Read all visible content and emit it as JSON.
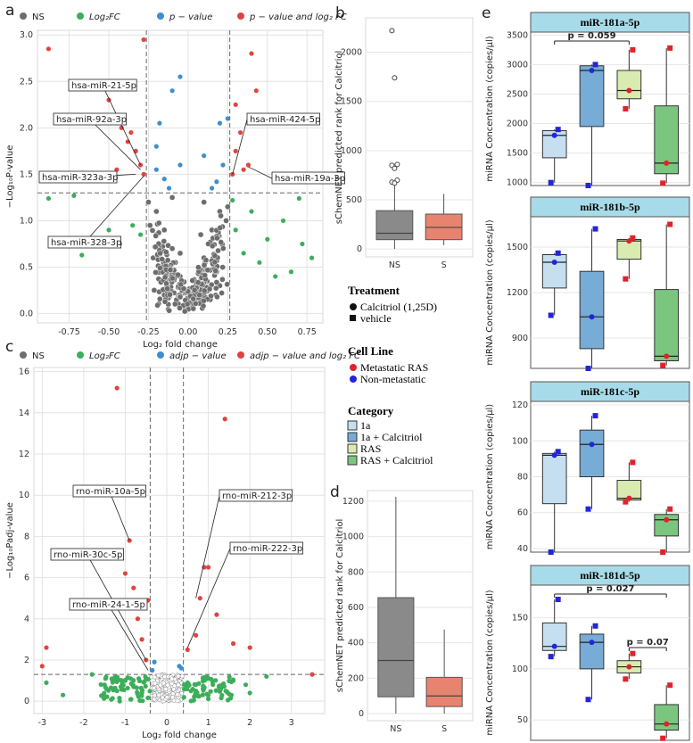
{
  "panel_labels": {
    "a": "a",
    "b": "b",
    "c": "c",
    "d": "d",
    "e": "e"
  },
  "colors": {
    "ns": "#6d6d6d",
    "fc": "#3cae5a",
    "p": "#3b8fd0",
    "both": "#e0443f",
    "box_b": "#8a8a8a",
    "box_s": "#e8836f",
    "c1a": "#c6dff0",
    "c1aCal": "#76acd6",
    "cRAS": "#d9ebb1",
    "cRASCal": "#7bc67f",
    "strip": "#a8dbe9",
    "metastatic": "#e2212b",
    "nonmetastatic": "#2425d8"
  },
  "legend_a": {
    "ns": "NS",
    "fc": "Log₂FC",
    "p": "p − value",
    "both": "p − value and log₂ FC"
  },
  "legend_c": {
    "ns": "NS",
    "fc": "Log₂FC",
    "p": "adjp − value",
    "both": "adjp − value and log₂ FC"
  },
  "treatment_legend": {
    "title": "Treatment",
    "items": [
      "Calcitriol (1,25D)",
      "vehicle"
    ]
  },
  "cellline_legend": {
    "title": "Cell Line",
    "items": [
      "Metastatic RAS",
      "Non-metastatic"
    ]
  },
  "category_legend": {
    "title": "Category",
    "items": [
      "1a",
      "1a + Calcitriol",
      "RAS",
      "RAS + Calcitriol"
    ]
  },
  "chart_data": [
    {
      "panel": "a",
      "type": "scatter",
      "xlabel": "Log₂ fold change",
      "ylabel": "−Log₁₀P-value",
      "xlim": [
        -0.95,
        0.85
      ],
      "ylim": [
        -0.1,
        3.05
      ],
      "xticks": [
        "-0.75",
        "-0.50",
        "-0.25",
        "0.00",
        "0.25",
        "0.50",
        "0.75"
      ],
      "yticks": [
        "0.0",
        "0.5",
        "1.0",
        "1.5",
        "2.0",
        "2.5",
        "3.0"
      ],
      "thresholds": {
        "x": [
          -0.263,
          0.263
        ],
        "y": 1.3
      },
      "series": [
        {
          "name": "NS",
          "points": [
            [
              -0.2,
              1.1
            ],
            [
              -0.15,
              0.9
            ],
            [
              -0.1,
              0.7
            ],
            [
              -0.05,
              0.4
            ],
            [
              0.0,
              0.1
            ],
            [
              0.05,
              0.3
            ],
            [
              0.1,
              0.6
            ],
            [
              0.15,
              0.9
            ],
            [
              0.2,
              1.1
            ],
            [
              -0.22,
              0.6
            ],
            [
              0.22,
              0.7
            ],
            [
              -0.12,
              0.3
            ],
            [
              0.12,
              0.35
            ],
            [
              -0.02,
              0.05
            ],
            [
              0.03,
              0.15
            ],
            [
              -0.18,
              0.5
            ],
            [
              0.18,
              0.45
            ],
            [
              -0.25,
              1.2
            ],
            [
              0.25,
              1.15
            ],
            [
              -0.08,
              0.55
            ],
            [
              0.08,
              0.85
            ],
            [
              -0.2,
              0.85
            ],
            [
              0.2,
              0.3
            ],
            [
              -0.15,
              0.2
            ],
            [
              0.14,
              0.15
            ],
            [
              -0.24,
              0.95
            ],
            [
              0.24,
              1.0
            ],
            [
              0.1,
              1.2
            ],
            [
              -0.1,
              1.25
            ],
            [
              -0.05,
              0.65
            ]
          ]
        },
        {
          "name": "Log₂FC",
          "points": [
            [
              -0.88,
              1.24
            ],
            [
              -0.72,
              1.27
            ],
            [
              -0.67,
              0.63
            ],
            [
              -0.5,
              0.9
            ],
            [
              -0.43,
              0.75
            ],
            [
              -0.35,
              0.95
            ],
            [
              -0.3,
              0.85
            ],
            [
              0.3,
              0.9
            ],
            [
              0.35,
              0.65
            ],
            [
              0.4,
              1.1
            ],
            [
              0.5,
              0.8
            ],
            [
              0.6,
              1.0
            ],
            [
              0.72,
              0.75
            ],
            [
              0.78,
              0.6
            ],
            [
              0.55,
              0.4
            ],
            [
              0.65,
              0.45
            ],
            [
              0.7,
              1.24
            ],
            [
              0.28,
              1.22
            ],
            [
              0.45,
              0.55
            ]
          ]
        },
        {
          "name": "p − value",
          "points": [
            [
              -0.2,
              1.55
            ],
            [
              -0.18,
              2.05
            ],
            [
              -0.12,
              1.35
            ],
            [
              -0.1,
              2.4
            ],
            [
              -0.05,
              1.6
            ],
            [
              0.1,
              1.7
            ],
            [
              0.15,
              1.35
            ],
            [
              0.2,
              2.05
            ],
            [
              0.25,
              2.1
            ],
            [
              0.22,
              1.6
            ],
            [
              -0.2,
              1.8
            ],
            [
              -0.15,
              1.45
            ],
            [
              0.18,
              1.42
            ],
            [
              -0.05,
              2.55
            ]
          ]
        },
        {
          "name": "p − value and log₂ FC",
          "points": [
            [
              -0.88,
              2.85
            ],
            [
              -0.5,
              2.3
            ],
            [
              -0.45,
              1.55
            ],
            [
              -0.42,
              2.0
            ],
            [
              -0.38,
              1.85
            ],
            [
              -0.33,
              1.75
            ],
            [
              -0.3,
              1.6
            ],
            [
              -0.28,
              1.5
            ],
            [
              -0.28,
              2.95
            ],
            [
              -0.36,
              1.95
            ],
            [
              0.3,
              1.75
            ],
            [
              0.33,
              1.95
            ],
            [
              0.35,
              1.55
            ],
            [
              0.4,
              2.8
            ],
            [
              0.43,
              2.4
            ],
            [
              0.28,
              1.5
            ],
            [
              0.38,
              1.6
            ],
            [
              0.3,
              2.25
            ]
          ]
        }
      ],
      "annotations": [
        "hsa-miR-21-5p",
        "hsa-miR-92a-3p",
        "hsa-miR-323a-3p",
        "hsa-miR-328-3p",
        "hsa-miR-424-5p",
        "hsa-miR-19a-3p"
      ]
    },
    {
      "panel": "b",
      "type": "box",
      "ylabel": "sChemNET predicted rank for Calcitriol",
      "categories": [
        "NS",
        "S"
      ],
      "yticks": [
        "0",
        "500",
        "1000",
        "1500",
        "2000"
      ],
      "ylim": [
        -80,
        2350
      ],
      "boxes": [
        {
          "q1": 95,
          "median": 160,
          "q3": 390,
          "whislo": 0,
          "whishi": 660
        },
        {
          "q1": 95,
          "median": 220,
          "q3": 355,
          "whislo": 40,
          "whishi": 560
        }
      ],
      "outliers_ns": [
        2220,
        1740,
        860,
        850,
        820,
        700,
        680,
        670
      ]
    },
    {
      "panel": "c",
      "type": "scatter",
      "xlabel": "Log₂ fold change",
      "ylabel": "−Log₁₀Padj-value",
      "xlim": [
        -3.2,
        3.8
      ],
      "ylim": [
        -0.6,
        16.2
      ],
      "xticks": [
        "-3",
        "-2",
        "-1",
        "0",
        "1",
        "2",
        "3"
      ],
      "yticks": [
        "0",
        "2",
        "4",
        "6",
        "8",
        "10",
        "12",
        "14",
        "16"
      ],
      "thresholds": {
        "x": [
          -0.4,
          0.4
        ],
        "y": 1.3
      },
      "series": [
        {
          "name": "NS",
          "points": [
            [
              -0.2,
              1.2
            ],
            [
              -0.1,
              0.8
            ],
            [
              0.0,
              0.3
            ],
            [
              0.1,
              0.6
            ],
            [
              0.2,
              1.1
            ],
            [
              -0.3,
              0.5
            ],
            [
              0.3,
              0.7
            ],
            [
              -0.05,
              0.1
            ],
            [
              0.05,
              0.2
            ],
            [
              -0.15,
              0.4
            ],
            [
              0.15,
              0.45
            ]
          ]
        },
        {
          "name": "Log₂FC",
          "points": [
            [
              -2.9,
              0.9
            ],
            [
              -2.5,
              0.3
            ],
            [
              -1.8,
              1.3
            ],
            [
              -1.5,
              0.8
            ],
            [
              -1.2,
              0.5
            ],
            [
              -1.0,
              1.0
            ],
            [
              -0.8,
              0.7
            ],
            [
              -0.6,
              0.4
            ],
            [
              -0.5,
              1.1
            ],
            [
              0.5,
              0.9
            ],
            [
              0.7,
              0.5
            ],
            [
              1.0,
              1.1
            ],
            [
              1.3,
              0.6
            ],
            [
              1.6,
              1.0
            ],
            [
              2.0,
              0.4
            ],
            [
              2.4,
              1.2
            ],
            [
              1.9,
              0.8
            ]
          ]
        },
        {
          "name": "adjp − value",
          "points": [
            [
              -0.35,
              1.5
            ],
            [
              0.35,
              1.6
            ],
            [
              -0.3,
              1.9
            ],
            [
              0.3,
              1.7
            ]
          ]
        },
        {
          "name": "adjp − value and log₂ FC",
          "points": [
            [
              -3.0,
              1.7
            ],
            [
              -2.9,
              2.6
            ],
            [
              -1.2,
              15.2
            ],
            [
              -0.9,
              7.8
            ],
            [
              -1.0,
              6.2
            ],
            [
              -0.8,
              5.5
            ],
            [
              -0.7,
              4.0
            ],
            [
              -0.6,
              3.0
            ],
            [
              -0.5,
              2.0
            ],
            [
              -0.45,
              4.9
            ],
            [
              0.5,
              2.5
            ],
            [
              0.7,
              3.2
            ],
            [
              0.8,
              5.0
            ],
            [
              0.9,
              6.5
            ],
            [
              1.0,
              6.5
            ],
            [
              1.2,
              4.2
            ],
            [
              1.4,
              13.7
            ],
            [
              1.6,
              2.8
            ],
            [
              2.0,
              2.6
            ],
            [
              3.5,
              1.3
            ]
          ]
        }
      ],
      "annotations": [
        "rno-miR-10a-5p",
        "rno-miR-30c-5p",
        "rno-miR-24-1-5p",
        "rno-miR-212-3p",
        "rno-miR-222-3p"
      ]
    },
    {
      "panel": "d",
      "type": "box",
      "ylabel": "sChemNET predicted rank for Calcitriol",
      "categories": [
        "NS",
        "S"
      ],
      "yticks": [
        "0",
        "200",
        "400",
        "600",
        "800",
        "1000",
        "1200"
      ],
      "ylim": [
        -40,
        1260
      ],
      "boxes": [
        {
          "q1": 95,
          "median": 300,
          "q3": 655,
          "whislo": 0,
          "whishi": 1225
        },
        {
          "q1": 40,
          "median": 100,
          "q3": 205,
          "whislo": 0,
          "whishi": 475
        }
      ]
    },
    {
      "panel": "e",
      "type": "box",
      "ylabel": "miRNA Concentration (copies/µl)",
      "facets": [
        {
          "title": "miR-181a-5p",
          "yticks": [
            "1000",
            "1500",
            "2000",
            "2500",
            "3000",
            "3500"
          ],
          "ylim": [
            950,
            3550
          ],
          "boxes": [
            {
              "q1": 1420,
              "median": 1800,
              "q3": 1880,
              "whislo": 1000,
              "whishi": 1900
            },
            {
              "q1": 1950,
              "median": 2900,
              "q3": 2980,
              "whislo": 950,
              "whishi": 3000
            },
            {
              "q1": 2420,
              "median": 2560,
              "q3": 2900,
              "whislo": 2250,
              "whishi": 3250
            },
            {
              "q1": 1150,
              "median": 1330,
              "q3": 2300,
              "whislo": 990,
              "whishi": 3280
            }
          ],
          "pvalues": [
            {
              "label": "p = 0.059",
              "from": 0,
              "to": 2
            }
          ]
        },
        {
          "title": "miR-181b-5p",
          "yticks": [
            "900",
            "1200",
            "1500"
          ],
          "ylim": [
            700,
            1700
          ],
          "boxes": [
            {
              "q1": 1230,
              "median": 1400,
              "q3": 1450,
              "whislo": 1050,
              "whishi": 1460
            },
            {
              "q1": 830,
              "median": 1040,
              "q3": 1340,
              "whislo": 700,
              "whishi": 1620
            },
            {
              "q1": 1420,
              "median": 1540,
              "q3": 1550,
              "whislo": 1290,
              "whishi": 1560
            },
            {
              "q1": 750,
              "median": 780,
              "q3": 1220,
              "whislo": 720,
              "whishi": 1650
            }
          ],
          "pvalues": []
        },
        {
          "title": "miR-181c-5p",
          "yticks": [
            "40",
            "60",
            "80",
            "100",
            "120"
          ],
          "ylim": [
            38,
            122
          ],
          "boxes": [
            {
              "q1": 65,
              "median": 92,
              "q3": 93,
              "whislo": 38,
              "whishi": 94
            },
            {
              "q1": 80,
              "median": 98,
              "q3": 106,
              "whislo": 62,
              "whishi": 114
            },
            {
              "q1": 67,
              "median": 68,
              "q3": 78,
              "whislo": 66,
              "whishi": 88
            },
            {
              "q1": 47,
              "median": 56,
              "q3": 59,
              "whislo": 38,
              "whishi": 62
            }
          ],
          "pvalues": []
        },
        {
          "title": "miR-181d-5p",
          "yticks": [
            "50",
            "100",
            "150"
          ],
          "ylim": [
            30,
            182
          ],
          "boxes": [
            {
              "q1": 118,
              "median": 122,
              "q3": 145,
              "whislo": 112,
              "whishi": 168
            },
            {
              "q1": 100,
              "median": 126,
              "q3": 134,
              "whislo": 70,
              "whishi": 142
            },
            {
              "q1": 96,
              "median": 102,
              "q3": 108,
              "whislo": 90,
              "whishi": 115
            },
            {
              "q1": 40,
              "median": 46,
              "q3": 65,
              "whislo": 32,
              "whishi": 84
            }
          ],
          "pvalues": [
            {
              "label": "p = 0.027",
              "from": 0,
              "to": 3
            },
            {
              "label": "p = 0.07",
              "from": 2,
              "to": 3
            }
          ]
        }
      ]
    }
  ]
}
